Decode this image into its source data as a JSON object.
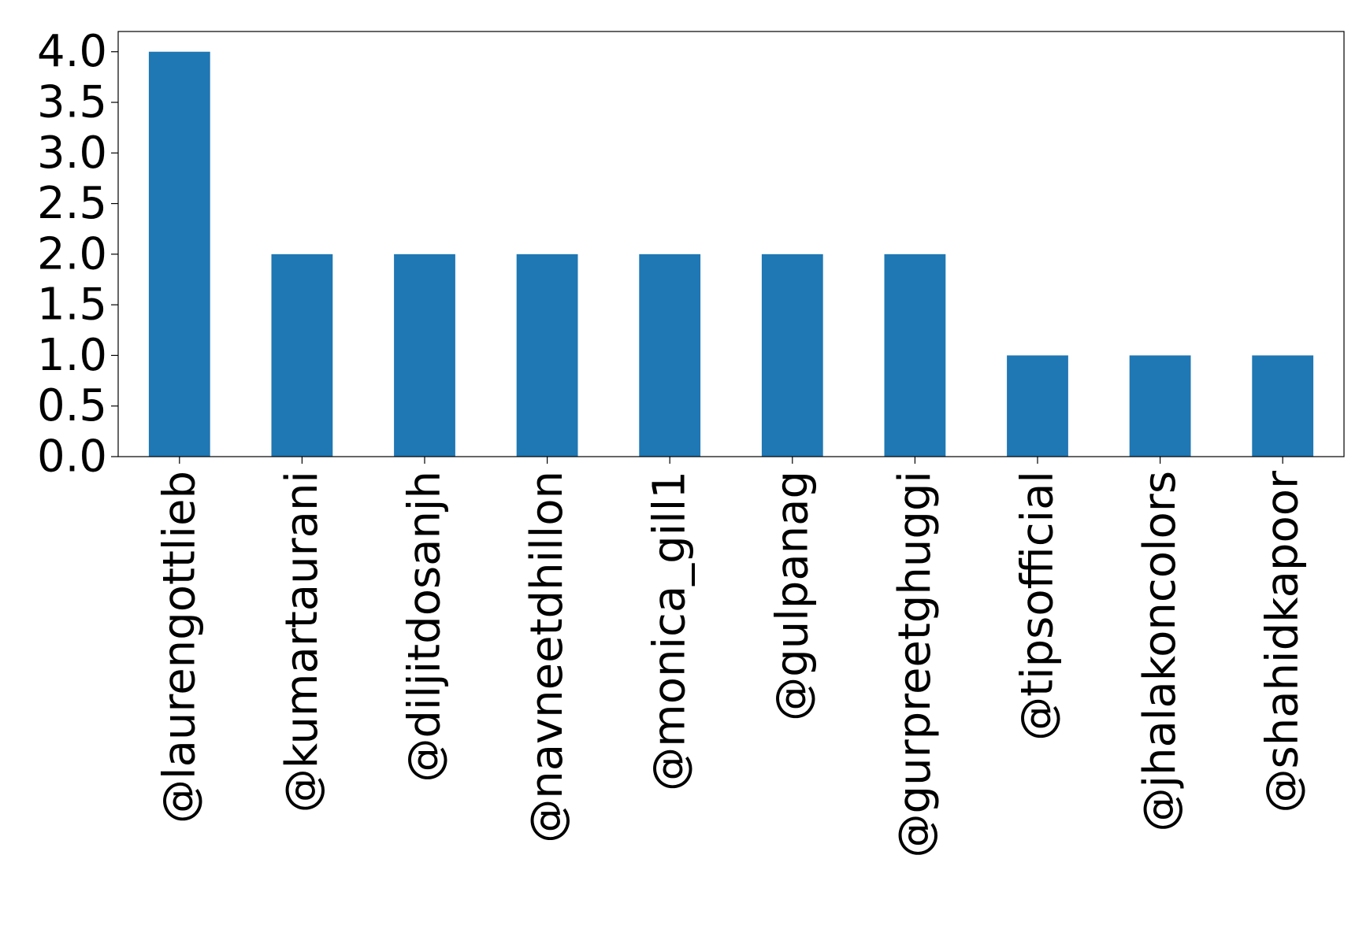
{
  "chart_data": {
    "type": "bar",
    "title": "",
    "xlabel": "",
    "ylabel": "",
    "categories": [
      "@laurengottlieb",
      "@kumartaurani",
      "@diljitdosanjh",
      "@navneetdhillon",
      "@monica_gill1",
      "@gulpanag",
      "@gurpreetghuggi",
      "@tipsofficial",
      "@jhalakoncolors",
      "@shahidkapoor"
    ],
    "values": [
      4,
      2,
      2,
      2,
      2,
      2,
      2,
      1,
      1,
      1
    ],
    "ylim": [
      0,
      4.2
    ],
    "yticks": [
      "0.0",
      "0.5",
      "1.0",
      "1.5",
      "2.0",
      "2.5",
      "3.0",
      "3.5",
      "4.0"
    ],
    "bar_color": "#1f77b4",
    "grid": false,
    "legend": "none"
  }
}
